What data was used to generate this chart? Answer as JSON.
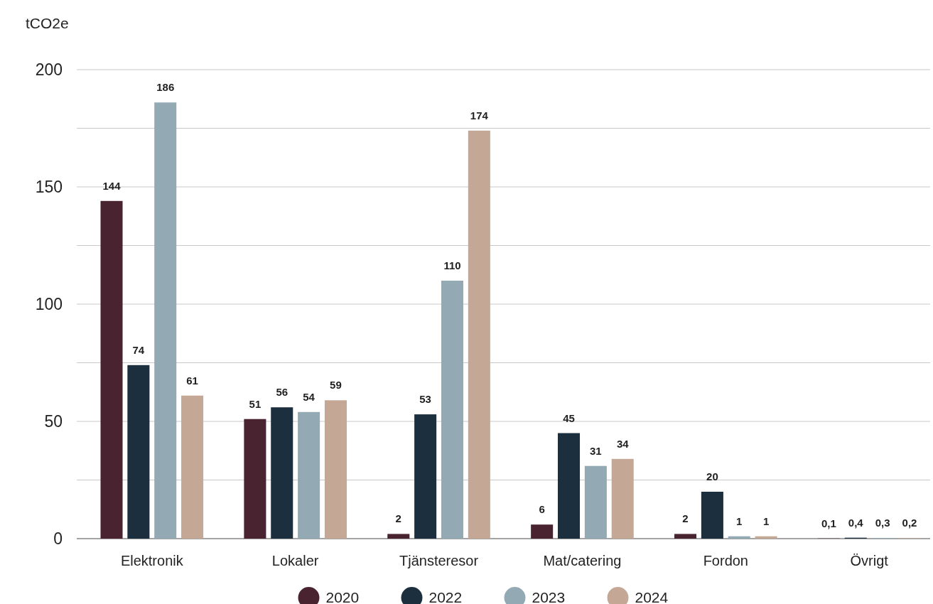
{
  "chart_data": {
    "type": "bar",
    "ylabel": "tCO2e",
    "categories": [
      "Elektronik",
      "Lokaler",
      "Tjänsteresor",
      "Mat/catering",
      "Fordon",
      "Övrigt"
    ],
    "series": [
      {
        "name": "2020",
        "color": "#4a2331",
        "values": [
          144,
          51,
          2,
          6,
          2,
          0.1
        ],
        "value_labels": [
          "144",
          "51",
          "2",
          "6",
          "2",
          "0,1"
        ]
      },
      {
        "name": "2022",
        "color": "#1c2f3f",
        "values": [
          74,
          56,
          53,
          45,
          20,
          0.4
        ],
        "value_labels": [
          "74",
          "56",
          "53",
          "45",
          "20",
          "0,4"
        ]
      },
      {
        "name": "2023",
        "color": "#93a9b4",
        "values": [
          186,
          54,
          110,
          31,
          1,
          0.3
        ],
        "value_labels": [
          "186",
          "54",
          "110",
          "31",
          "1",
          "0,3"
        ]
      },
      {
        "name": "2024",
        "color": "#c4a895",
        "values": [
          61,
          59,
          174,
          34,
          1,
          0.2
        ],
        "value_labels": [
          "61",
          "59",
          "174",
          "34",
          "1",
          "0,2"
        ]
      }
    ],
    "ylim": [
      0,
      200
    ],
    "yticks": [
      0,
      {
        "value": 25,
        "label": null
      },
      50,
      {
        "value": 75,
        "label": null
      },
      100,
      {
        "value": 125,
        "label": null
      },
      150,
      {
        "value": 175,
        "label": null
      },
      200
    ],
    "grid": "y",
    "legend": "bottom"
  }
}
